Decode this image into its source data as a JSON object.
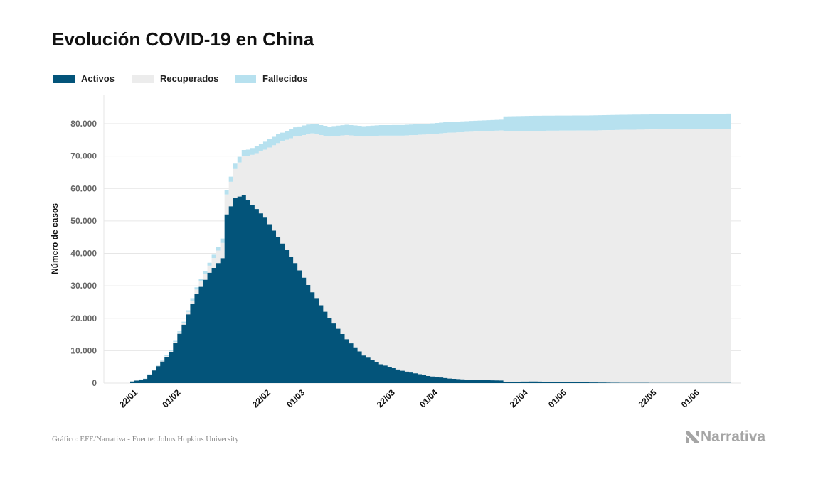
{
  "title": "Evolución COVID-19 en China",
  "legend": [
    {
      "label": "Activos",
      "color": "#03547a"
    },
    {
      "label": "Recuperados",
      "color": "#ececec"
    },
    {
      "label": "Fallecidos",
      "color": "#b7e1ef"
    }
  ],
  "footer": {
    "source": "Gráfico: EFE/Narrativa - Fuente: Johns Hopkins University",
    "brand": "Narrativa"
  },
  "chart_data": {
    "type": "area",
    "stacked": true,
    "ylabel": "Número de casos",
    "ylim": [
      0,
      85000
    ],
    "y_ticks": [
      0,
      10000,
      20000,
      30000,
      40000,
      50000,
      60000,
      70000,
      80000
    ],
    "y_tick_labels": [
      "0",
      "10.000",
      "20.000",
      "30.000",
      "40.000",
      "50.000",
      "60.000",
      "70.000",
      "80.000"
    ],
    "x_range": [
      "2020-01-22",
      "2020-06-09"
    ],
    "x_tick_labels": [
      {
        "date": "2020-01-22",
        "label": "22/01"
      },
      {
        "date": "2020-02-01",
        "label": "01/02"
      },
      {
        "date": "2020-02-22",
        "label": "22/02"
      },
      {
        "date": "2020-03-01",
        "label": "01/03"
      },
      {
        "date": "2020-03-22",
        "label": "22/03"
      },
      {
        "date": "2020-04-01",
        "label": "01/04"
      },
      {
        "date": "2020-04-22",
        "label": "22/04"
      },
      {
        "date": "2020-05-01",
        "label": "01/05"
      },
      {
        "date": "2020-05-22",
        "label": "22/05"
      },
      {
        "date": "2020-06-01",
        "label": "01/06"
      }
    ],
    "series": [
      {
        "name": "Activos",
        "color": "#03547a",
        "points": [
          [
            "2020-01-22",
            500
          ],
          [
            "2020-01-25",
            1300
          ],
          [
            "2020-01-28",
            5200
          ],
          [
            "2020-01-31",
            9500
          ],
          [
            "2020-02-03",
            18000
          ],
          [
            "2020-02-06",
            27500
          ],
          [
            "2020-02-09",
            34000
          ],
          [
            "2020-02-12",
            38500
          ],
          [
            "2020-02-13",
            52000
          ],
          [
            "2020-02-15",
            57000
          ],
          [
            "2020-02-17",
            58000
          ],
          [
            "2020-02-19",
            55000
          ],
          [
            "2020-02-22",
            51000
          ],
          [
            "2020-02-25",
            45000
          ],
          [
            "2020-02-29",
            37000
          ],
          [
            "2020-03-04",
            28000
          ],
          [
            "2020-03-08",
            20000
          ],
          [
            "2020-03-12",
            13500
          ],
          [
            "2020-03-16",
            8500
          ],
          [
            "2020-03-20",
            5800
          ],
          [
            "2020-03-25",
            3800
          ],
          [
            "2020-03-31",
            2200
          ],
          [
            "2020-04-05",
            1400
          ],
          [
            "2020-04-10",
            1000
          ],
          [
            "2020-04-17",
            800
          ],
          [
            "2020-04-18",
            400
          ],
          [
            "2020-04-25",
            500
          ],
          [
            "2020-05-01",
            350
          ],
          [
            "2020-05-08",
            200
          ],
          [
            "2020-05-15",
            90
          ],
          [
            "2020-05-25",
            60
          ],
          [
            "2020-06-09",
            50
          ]
        ]
      },
      {
        "name": "Recuperados",
        "color": "#ececec",
        "points": [
          [
            "2020-01-22",
            30
          ],
          [
            "2020-01-28",
            120
          ],
          [
            "2020-02-03",
            500
          ],
          [
            "2020-02-09",
            2200
          ],
          [
            "2020-02-12",
            4700
          ],
          [
            "2020-02-15",
            9000
          ],
          [
            "2020-02-18",
            13500
          ],
          [
            "2020-02-22",
            21000
          ],
          [
            "2020-02-25",
            29000
          ],
          [
            "2020-02-29",
            39000
          ],
          [
            "2020-03-04",
            49000
          ],
          [
            "2020-03-08",
            56000
          ],
          [
            "2020-03-12",
            63000
          ],
          [
            "2020-03-16",
            67500
          ],
          [
            "2020-03-20",
            70500
          ],
          [
            "2020-03-25",
            72500
          ],
          [
            "2020-03-31",
            74500
          ],
          [
            "2020-04-05",
            75800
          ],
          [
            "2020-04-10",
            76500
          ],
          [
            "2020-04-17",
            77100
          ],
          [
            "2020-04-18",
            77200
          ],
          [
            "2020-04-25",
            77300
          ],
          [
            "2020-05-01",
            77500
          ],
          [
            "2020-05-08",
            77700
          ],
          [
            "2020-05-15",
            78000
          ],
          [
            "2020-05-25",
            78200
          ],
          [
            "2020-06-09",
            78400
          ]
        ]
      },
      {
        "name": "Fallecidos",
        "color": "#b7e1ef",
        "points": [
          [
            "2020-01-22",
            17
          ],
          [
            "2020-01-28",
            130
          ],
          [
            "2020-02-03",
            430
          ],
          [
            "2020-02-09",
            910
          ],
          [
            "2020-02-12",
            1370
          ],
          [
            "2020-02-15",
            1670
          ],
          [
            "2020-02-18",
            2010
          ],
          [
            "2020-02-22",
            2450
          ],
          [
            "2020-02-25",
            2700
          ],
          [
            "2020-02-29",
            2870
          ],
          [
            "2020-03-04",
            3010
          ],
          [
            "2020-03-08",
            3120
          ],
          [
            "2020-03-12",
            3180
          ],
          [
            "2020-03-16",
            3230
          ],
          [
            "2020-03-20",
            3260
          ],
          [
            "2020-03-25",
            3290
          ],
          [
            "2020-03-31",
            3310
          ],
          [
            "2020-04-05",
            3330
          ],
          [
            "2020-04-10",
            3340
          ],
          [
            "2020-04-17",
            3342
          ],
          [
            "2020-04-18",
            4640
          ],
          [
            "2020-04-25",
            4640
          ],
          [
            "2020-05-01",
            4640
          ],
          [
            "2020-05-08",
            4640
          ],
          [
            "2020-05-15",
            4640
          ],
          [
            "2020-05-25",
            4640
          ],
          [
            "2020-06-09",
            4640
          ]
        ]
      }
    ]
  }
}
